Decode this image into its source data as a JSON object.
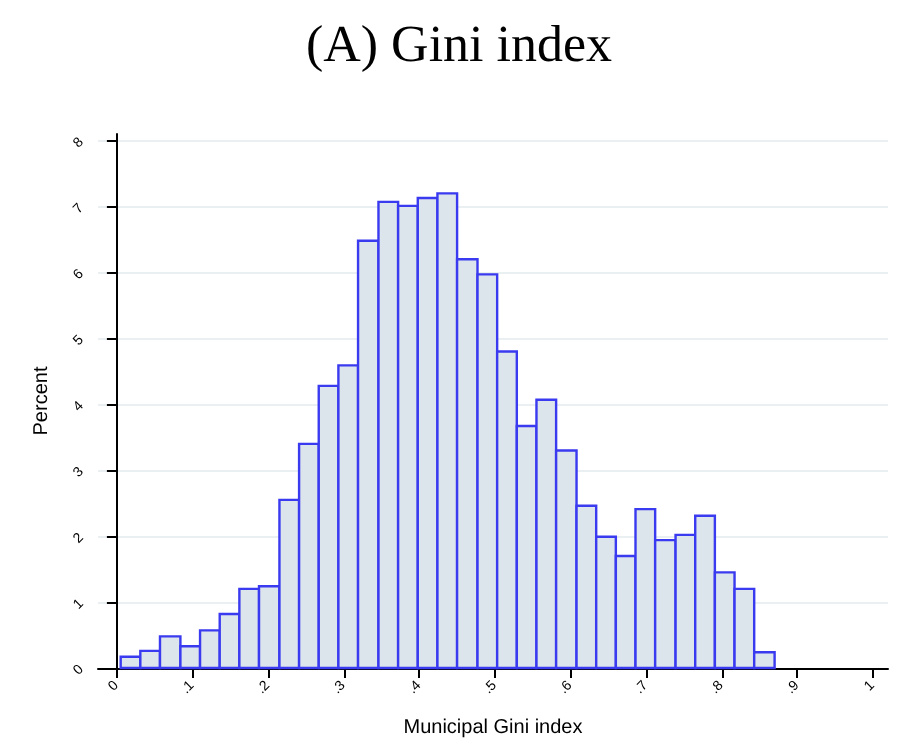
{
  "chart_data": {
    "type": "histogram",
    "title": "(A) Gini index",
    "xlabel": "Municipal Gini index",
    "ylabel": "Percent",
    "bins": [
      0.005,
      0.031,
      0.057,
      0.084,
      0.11,
      0.136,
      0.162,
      0.188,
      0.215,
      0.241,
      0.267,
      0.293,
      0.319,
      0.346,
      0.372,
      0.398,
      0.424,
      0.45,
      0.477,
      0.503,
      0.529,
      0.555,
      0.581,
      0.608,
      0.634,
      0.66,
      0.686,
      0.712,
      0.739,
      0.765,
      0.791,
      0.817,
      0.843,
      0.87
    ],
    "values": [
      0.17,
      0.26,
      0.48,
      0.33,
      0.57,
      0.82,
      1.2,
      1.24,
      2.55,
      3.4,
      4.28,
      4.59,
      6.48,
      7.07,
      7.01,
      7.13,
      7.2,
      6.2,
      5.97,
      4.8,
      3.67,
      4.07,
      3.3,
      2.46,
      1.99,
      1.7,
      2.41,
      1.94,
      2.02,
      2.31,
      1.45,
      1.2,
      0.24
    ],
    "color": "#dce5eb",
    "xlim": [
      -0.025,
      1.02
    ],
    "xticks": [
      {
        "value": 0,
        "label": "0"
      },
      {
        "value": 0.1,
        "label": ".1"
      },
      {
        "value": 0.2,
        "label": ".2"
      },
      {
        "value": 0.3,
        "label": ".3"
      },
      {
        "value": 0.4,
        "label": ".4"
      },
      {
        "value": 0.5,
        "label": ".5"
      },
      {
        "value": 0.6,
        "label": ".6"
      },
      {
        "value": 0.7,
        "label": ".7"
      },
      {
        "value": 0.8,
        "label": ".8"
      },
      {
        "value": 0.9,
        "label": ".9"
      },
      {
        "value": 1,
        "label": "1"
      }
    ],
    "ylim": [
      0,
      8.1
    ],
    "yticks": [
      0,
      1,
      2,
      3,
      4,
      5,
      6,
      7,
      8
    ],
    "grid": "y"
  }
}
